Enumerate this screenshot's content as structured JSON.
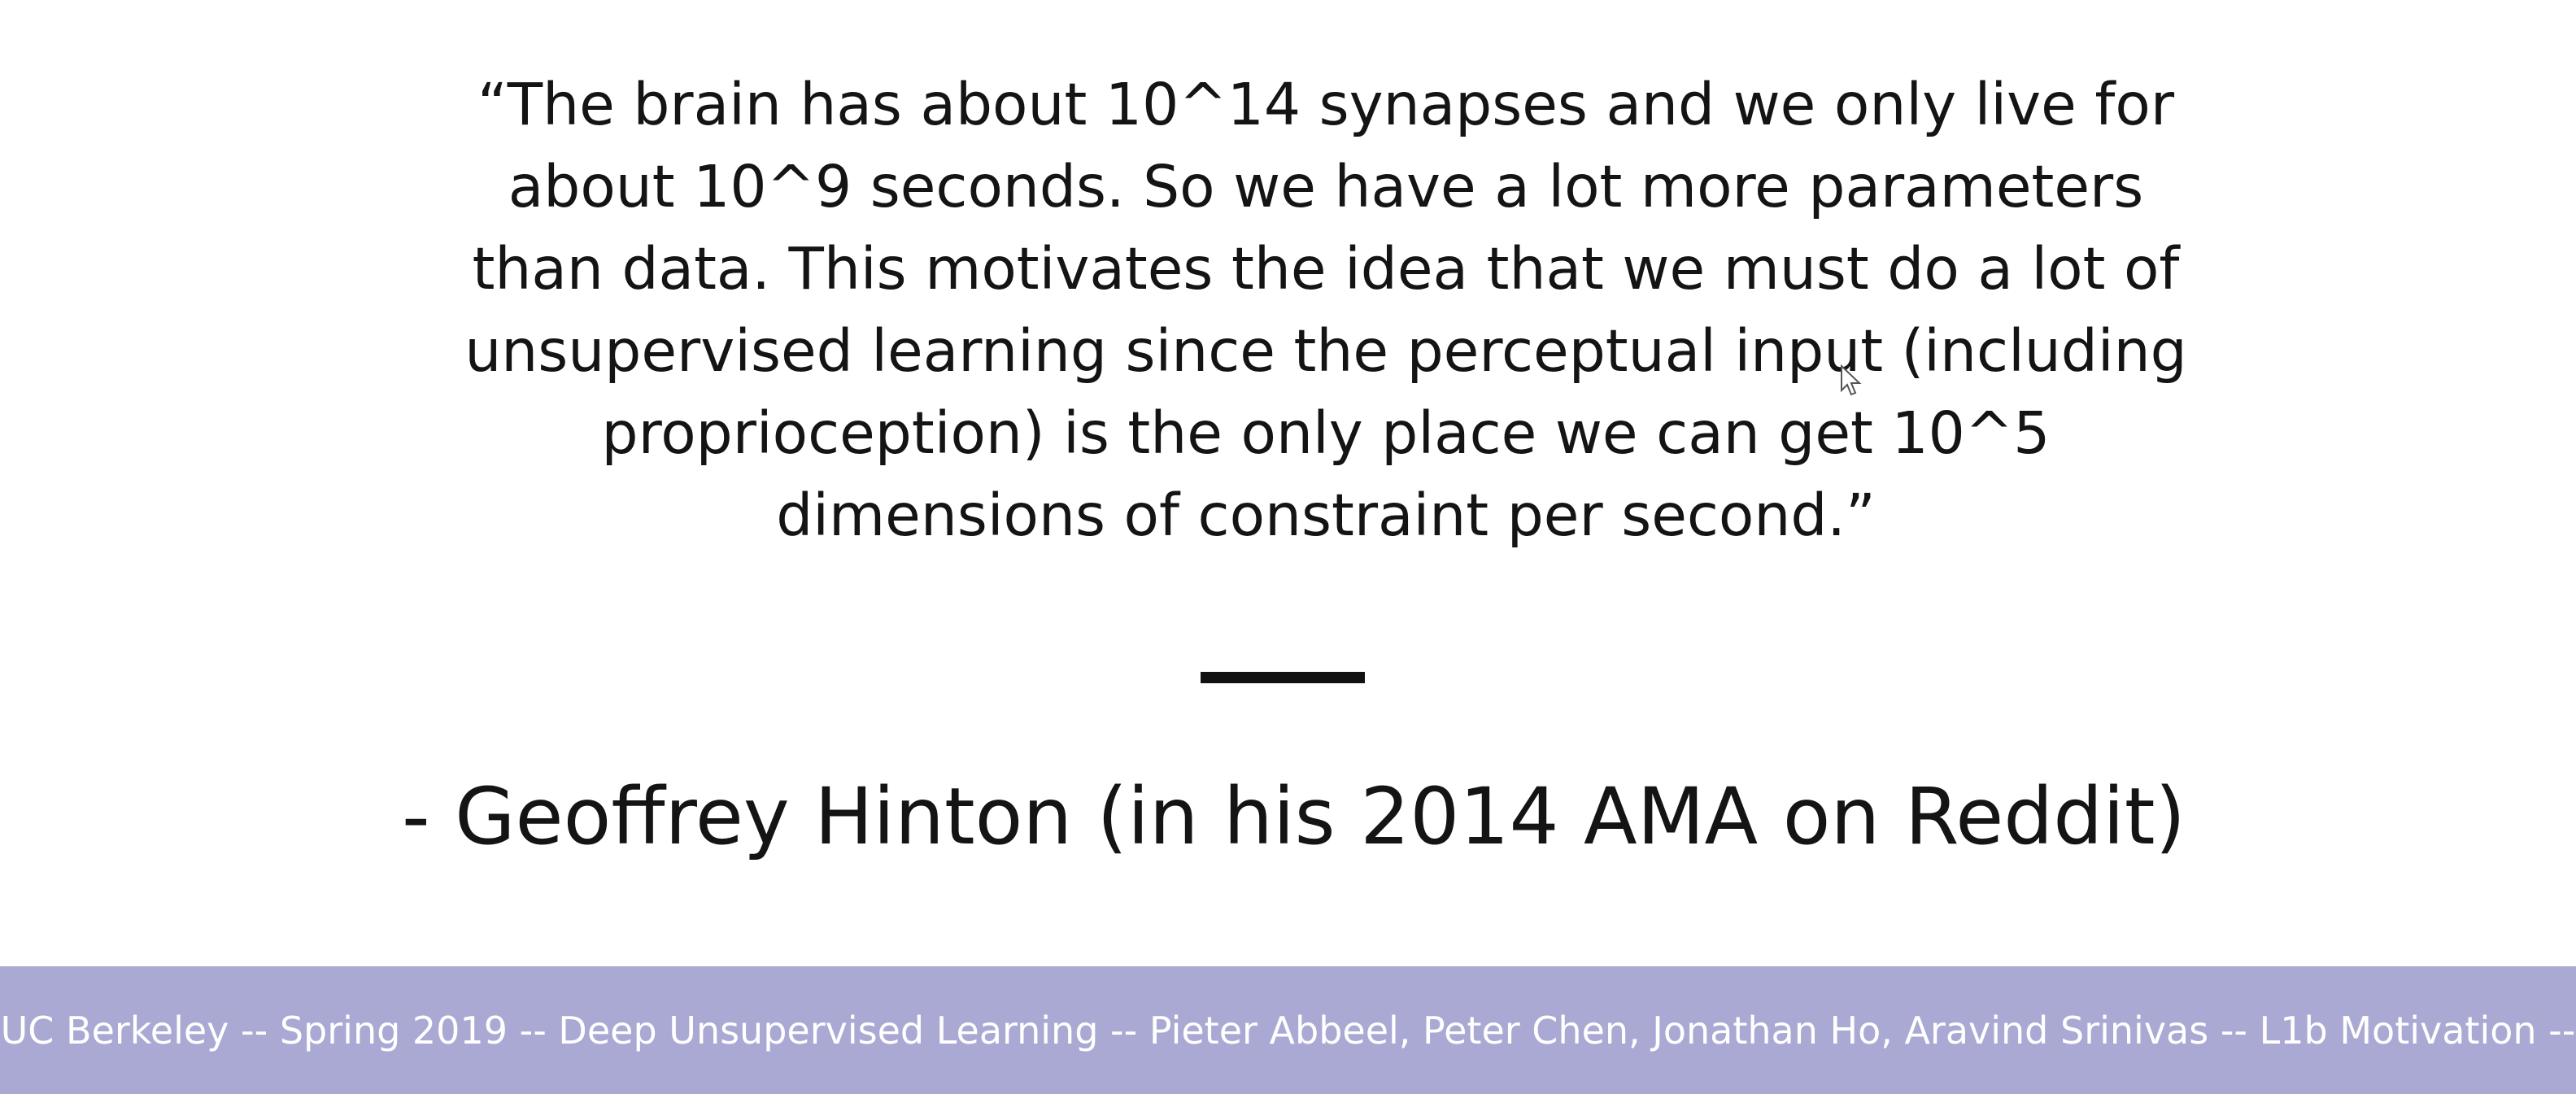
{
  "slide": {
    "quote": "“The brain has about 10^14 synapses and we only live for about 10^9 seconds. So we have a lot more parameters than data. This motivates the idea that we must do a lot of unsupervised learning since the perceptual input (including proprioception) is the only place we can get 10^5 dimensions of constraint per second.”",
    "attribution": "- Geoffrey Hinton (in his 2014 AMA on Reddit)",
    "footer": "UC Berkeley -- Spring 2019 -- Deep Unsupervised Learning -- Pieter Abbeel, Peter Chen, Jonathan Ho, Aravind Srinivas -- L1b Motivation --"
  },
  "colors": {
    "footer_background": "#a9a9d3",
    "footer_text": "#ffffff",
    "body_text": "#141414"
  },
  "icons": {
    "cursor": "mouse-pointer-icon"
  }
}
